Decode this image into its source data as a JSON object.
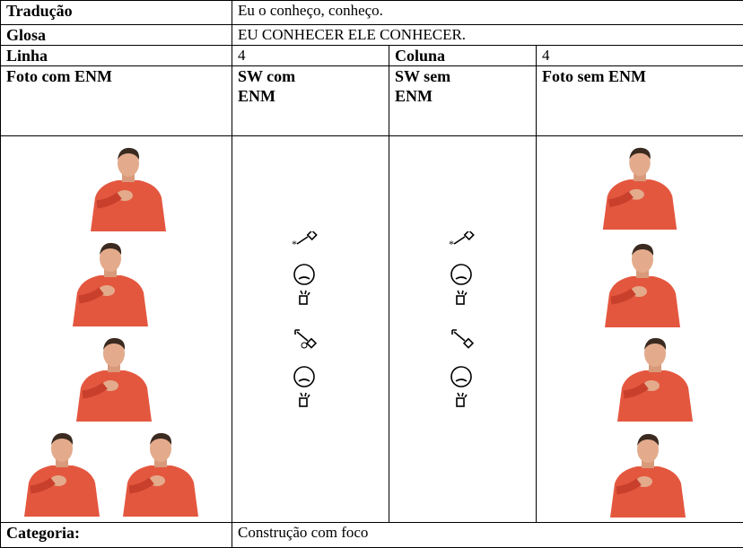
{
  "table": {
    "rows": [
      [
        "Tradução",
        "Eu o conheço, conheço."
      ],
      [
        "Glosa",
        "EU CONHECER ELE CONHECER."
      ],
      [
        "Linha",
        "4",
        "Coluna",
        "4"
      ],
      [
        "Foto com ENM",
        "SW com ENM",
        "SW sem ENM",
        "Foto sem ENM"
      ]
    ],
    "footer": [
      "Categoria:",
      "Construção com foco"
    ]
  }
}
